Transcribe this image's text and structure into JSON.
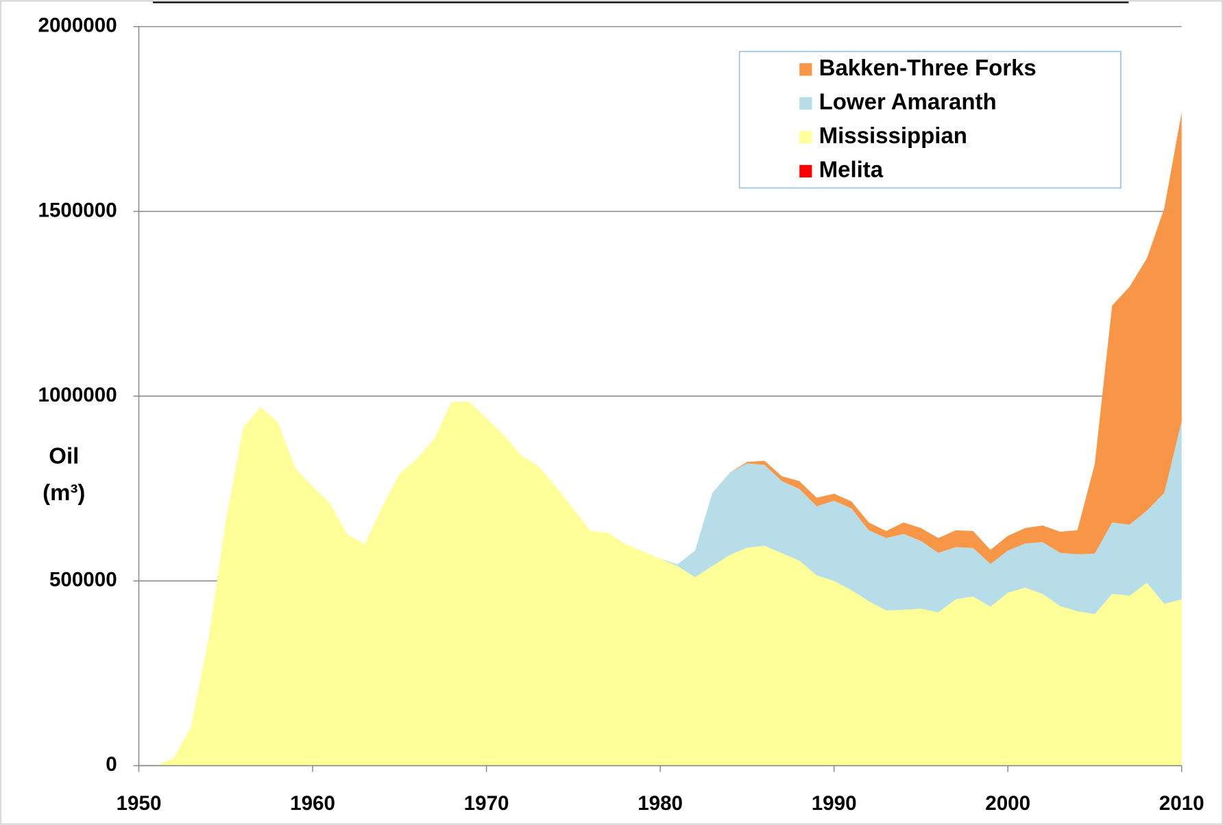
{
  "chart_data": {
    "type": "stacked-area",
    "ylabel_lines": [
      "Oil",
      "(m³)"
    ],
    "x": [
      1951,
      1952,
      1953,
      1954,
      1955,
      1956,
      1957,
      1958,
      1959,
      1960,
      1961,
      1962,
      1963,
      1964,
      1965,
      1966,
      1967,
      1968,
      1969,
      1970,
      1971,
      1972,
      1973,
      1974,
      1975,
      1976,
      1977,
      1978,
      1979,
      1980,
      1981,
      1982,
      1983,
      1984,
      1985,
      1986,
      1987,
      1988,
      1989,
      1990,
      1991,
      1992,
      1993,
      1994,
      1995,
      1996,
      1997,
      1998,
      1999,
      2000,
      2001,
      2002,
      2003,
      2004,
      2005,
      2006,
      2007,
      2008,
      2009,
      2010
    ],
    "series": [
      {
        "name": "Bakken-Three Forks",
        "color": "#f79646",
        "values": [
          0,
          0,
          0,
          0,
          0,
          0,
          0,
          0,
          0,
          0,
          0,
          0,
          0,
          0,
          0,
          0,
          0,
          0,
          0,
          0,
          0,
          0,
          0,
          0,
          0,
          0,
          0,
          0,
          0,
          0,
          0,
          0,
          0,
          0,
          4000,
          11000,
          13000,
          21000,
          23000,
          19000,
          19000,
          21000,
          19000,
          31000,
          35000,
          40000,
          46000,
          46000,
          38000,
          40000,
          42000,
          45000,
          57000,
          65000,
          242000,
          587000,
          644000,
          683000,
          770000,
          836000
        ]
      },
      {
        "name": "Lower Amaranth",
        "color": "#b7dde8",
        "values": [
          0,
          0,
          0,
          0,
          0,
          0,
          0,
          0,
          0,
          0,
          0,
          0,
          0,
          0,
          0,
          0,
          0,
          0,
          0,
          0,
          0,
          0,
          0,
          0,
          0,
          0,
          0,
          0,
          0,
          0,
          5000,
          72000,
          198000,
          223000,
          228000,
          219000,
          195000,
          194000,
          187000,
          217000,
          221000,
          192000,
          196000,
          205000,
          183000,
          161000,
          141000,
          131000,
          116000,
          114000,
          119000,
          140000,
          144000,
          154000,
          164000,
          193000,
          192000,
          195000,
          300000,
          482000
        ]
      },
      {
        "name": "Mississippian",
        "color": "#ffff99",
        "values": [
          0,
          20000,
          105000,
          340000,
          660000,
          915000,
          970000,
          930000,
          805000,
          755000,
          710000,
          625000,
          600000,
          700000,
          790000,
          830000,
          885000,
          985000,
          985000,
          940000,
          895000,
          840000,
          810000,
          755000,
          695000,
          635000,
          630000,
          600000,
          580000,
          560000,
          540000,
          510000,
          540000,
          570000,
          590000,
          595000,
          575000,
          555000,
          515000,
          500000,
          475000,
          445000,
          420000,
          422000,
          425000,
          415000,
          450000,
          458000,
          430000,
          468000,
          482000,
          465000,
          432000,
          418000,
          410000,
          465000,
          460000,
          495000,
          438000,
          450000
        ]
      },
      {
        "name": "Melita",
        "color": "#ff0000",
        "values": [
          0,
          0,
          0,
          0,
          0,
          0,
          0,
          0,
          0,
          0,
          0,
          0,
          0,
          0,
          0,
          0,
          0,
          0,
          0,
          0,
          0,
          0,
          0,
          0,
          0,
          0,
          0,
          0,
          0,
          0,
          0,
          0,
          0,
          0,
          0,
          0,
          0,
          0,
          0,
          0,
          0,
          0,
          0,
          0,
          0,
          0,
          0,
          0,
          0,
          0,
          0,
          0,
          0,
          0,
          0,
          0,
          0,
          0,
          0,
          0
        ]
      }
    ],
    "stack_order": "bottom-up from last series",
    "xlim": [
      1950,
      2010
    ],
    "xticks": [
      1950,
      1960,
      1970,
      1980,
      1990,
      2000,
      2010
    ],
    "ylim": [
      0,
      2000000
    ],
    "yticks": [
      0,
      500000,
      1000000,
      1500000,
      2000000
    ],
    "grid": true,
    "legend": "top-right"
  }
}
